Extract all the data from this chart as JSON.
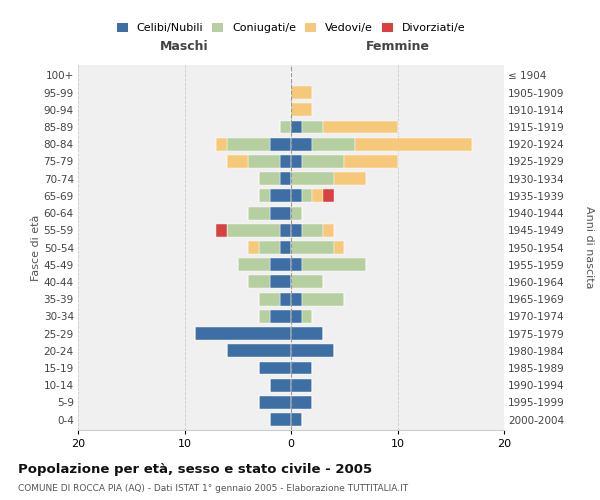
{
  "age_groups": [
    "0-4",
    "5-9",
    "10-14",
    "15-19",
    "20-24",
    "25-29",
    "30-34",
    "35-39",
    "40-44",
    "45-49",
    "50-54",
    "55-59",
    "60-64",
    "65-69",
    "70-74",
    "75-79",
    "80-84",
    "85-89",
    "90-94",
    "95-99",
    "100+"
  ],
  "birth_years": [
    "2000-2004",
    "1995-1999",
    "1990-1994",
    "1985-1989",
    "1980-1984",
    "1975-1979",
    "1970-1974",
    "1965-1969",
    "1960-1964",
    "1955-1959",
    "1950-1954",
    "1945-1949",
    "1940-1944",
    "1935-1939",
    "1930-1934",
    "1925-1929",
    "1920-1924",
    "1915-1919",
    "1910-1914",
    "1905-1909",
    "≤ 1904"
  ],
  "maschi": {
    "celibi": [
      2,
      3,
      2,
      3,
      6,
      9,
      2,
      1,
      2,
      2,
      1,
      1,
      2,
      2,
      1,
      1,
      2,
      0,
      0,
      0,
      0
    ],
    "coniugati": [
      0,
      0,
      0,
      0,
      0,
      0,
      1,
      2,
      2,
      3,
      2,
      5,
      2,
      1,
      2,
      3,
      4,
      1,
      0,
      0,
      0
    ],
    "vedovi": [
      0,
      0,
      0,
      0,
      0,
      0,
      0,
      0,
      0,
      0,
      1,
      0,
      0,
      0,
      0,
      2,
      1,
      0,
      0,
      0,
      0
    ],
    "divorziati": [
      0,
      0,
      0,
      0,
      0,
      0,
      0,
      0,
      0,
      0,
      0,
      1,
      0,
      0,
      0,
      0,
      0,
      0,
      0,
      0,
      0
    ]
  },
  "femmine": {
    "nubili": [
      1,
      2,
      2,
      2,
      4,
      3,
      1,
      1,
      0,
      1,
      0,
      1,
      0,
      1,
      0,
      1,
      2,
      1,
      0,
      0,
      0
    ],
    "coniugate": [
      0,
      0,
      0,
      0,
      0,
      0,
      1,
      4,
      3,
      6,
      4,
      2,
      1,
      1,
      4,
      4,
      4,
      2,
      0,
      0,
      0
    ],
    "vedove": [
      0,
      0,
      0,
      0,
      0,
      0,
      0,
      0,
      0,
      0,
      1,
      1,
      0,
      1,
      3,
      5,
      11,
      7,
      2,
      2,
      0
    ],
    "divorziate": [
      0,
      0,
      0,
      0,
      0,
      0,
      0,
      0,
      0,
      0,
      0,
      0,
      0,
      1,
      0,
      0,
      0,
      0,
      0,
      0,
      0
    ]
  },
  "colors": {
    "celibi_nubili": "#3d6fa5",
    "coniugati": "#b5cfa0",
    "vedovi": "#f5c87a",
    "divorziati": "#d94040"
  },
  "xlim": 20,
  "title": "Popolazione per età, sesso e stato civile - 2005",
  "subtitle": "COMUNE DI ROCCA PIA (AQ) - Dati ISTAT 1° gennaio 2005 - Elaborazione TUTTITALIA.IT",
  "ylabel_left": "Fasce di età",
  "ylabel_right": "Anni di nascita",
  "xlabel_maschi": "Maschi",
  "xlabel_femmine": "Femmine",
  "bg_color": "#ffffff",
  "plot_bg_color": "#f0f0f0"
}
